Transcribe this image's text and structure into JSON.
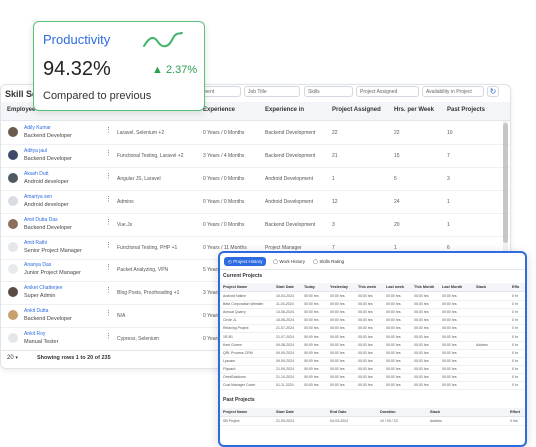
{
  "skill_table": {
    "title": "Skill Sea",
    "filters": [
      "ment",
      "Job Title",
      "Skills",
      "Project Assigned",
      "Availability in Project"
    ],
    "columns": [
      "Employee",
      "Experience",
      "Experience in",
      "Project Assigned",
      "Hrs. per Week",
      "Past Projects"
    ],
    "rows": [
      {
        "name": "Adily Kumar",
        "role": "Backend Developer",
        "skills": "Laravel, Selenium +2",
        "experience": "0 Years / 0 Months",
        "experience_in": "Backend Development",
        "assigned": "22",
        "hours": "22",
        "past": "10",
        "avatar_color": "#6b5a4e"
      },
      {
        "name": "Aditya jaul",
        "role": "Backend Developer",
        "skills": "Functional Testing, Laravel +2",
        "experience": "3 Years / 4 Months",
        "experience_in": "Backend Development",
        "assigned": "21",
        "hours": "15",
        "past": "7",
        "avatar_color": "#3d4a6b"
      },
      {
        "name": "Akash Dutt",
        "role": "Android developer",
        "skills": "Angular JS, Laravel",
        "experience": "0 Years / 0 Months",
        "experience_in": "Android Development",
        "assigned": "1",
        "hours": "5",
        "past": "3",
        "avatar_color": "#4e5a62"
      },
      {
        "name": "Amartya sen",
        "role": "Android developer",
        "skills": "Admins",
        "experience": "0 Years / 0 Months",
        "experience_in": "Android Development",
        "assigned": "12",
        "hours": "24",
        "past": "1",
        "avatar_color": "#d9dde3"
      },
      {
        "name": "Amit Dutta Das",
        "role": "Backend Developer",
        "skills": "Vue.Js",
        "experience": "0 Years / 0 Months",
        "experience_in": "Backend Development",
        "assigned": "3",
        "hours": "20",
        "past": "1",
        "avatar_color": "#8a6f5c"
      },
      {
        "name": "Amit Rathi",
        "role": "Senior Project Manager",
        "skills": "Functional Testing, PHP +1",
        "experience": "0 Years / 11 Months",
        "experience_in": "Project Manager",
        "assigned": "7",
        "hours": "1",
        "past": "6",
        "avatar_color": "#e3e6ea"
      },
      {
        "name": "Ananya Das",
        "role": "Junior Project Manager",
        "skills": "Packet Analyzing, VPN",
        "experience": "5 Years / 0 Months",
        "experience_in": "Project Manager",
        "assigned": "",
        "hours": "",
        "past": "",
        "avatar_color": "#e8ebee"
      },
      {
        "name": "Aniket Chatterjee",
        "role": "Super Admin",
        "skills": "Blog Posts, Proofreading +1",
        "experience": "3 Years / 0 Months",
        "experience_in": "",
        "assigned": "",
        "hours": "",
        "past": "",
        "avatar_color": "#5b4b45"
      },
      {
        "name": "Ankit Dutta",
        "role": "Backend Developer",
        "skills": "N/A",
        "experience": "0 Years / 0 Months",
        "experience_in": "",
        "assigned": "",
        "hours": "",
        "past": "",
        "avatar_color": "#c9a070"
      },
      {
        "name": "Ankit Roy",
        "role": "Manual Tester",
        "skills": "Cypress, Selenium",
        "experience": "0 Years / 0 Months",
        "experience_in": "",
        "assigned": "",
        "hours": "",
        "past": "",
        "avatar_color": "#e3e6ea"
      }
    ],
    "page_size": "20",
    "rows_info": "Showing rows 1 to 20 of 235"
  },
  "productivity": {
    "title": "Productivity",
    "value": "94.32%",
    "change": "2.37%",
    "subtitle": "Compared to previous"
  },
  "project_history": {
    "tabs": [
      "Project History",
      "Work History",
      "Skills Rating"
    ],
    "current_title": "Current Projects",
    "current_columns": [
      "Project Name",
      "Start Date",
      "Today",
      "Yesterday",
      "This week",
      "Last week",
      "This Month",
      "Last Month",
      "Stack",
      "Effo"
    ],
    "current_rows": [
      [
        "Android Native",
        "10-04-2024",
        "00:00 hrs",
        "00:00 hrs",
        "00:00 hrs",
        "00:00 hrs",
        "00:00 hrs",
        "00:00 hrs",
        "",
        "0 hr"
      ],
      [
        "Beta Corporation Website",
        "11-04-2024",
        "00:00 hrs",
        "00:00 hrs",
        "00:00 hrs",
        "00:00 hrs",
        "00:00 hrs",
        "00:00 hrs",
        "",
        "0 hr"
      ],
      [
        "Annual Quarry",
        "14-06-2024",
        "00:00 hrs",
        "00:00 hrs",
        "00:00 hrs",
        "00:00 hrs",
        "00:00 hrs",
        "00:00 hrs",
        "",
        "0 hr"
      ],
      [
        "Circle JL",
        "16-06-2024",
        "00:00 hrs",
        "00:00 hrs",
        "00:00 hrs",
        "00:00 hrs",
        "00:00 hrs",
        "00:00 hrs",
        "",
        "0 hr"
      ],
      [
        "Relaxing Project",
        "21-07-2024",
        "00:00 hrs",
        "00:00 hrs",
        "00:00 hrs",
        "00:00 hrs",
        "00:00 hrs",
        "00:00 hrs",
        "",
        "0 hr"
      ],
      [
        "1R-B1",
        "21-07-2024",
        "00:00 hrs",
        "00:00 hrs",
        "00:00 hrs",
        "00:00 hrs",
        "00:00 hrs",
        "00:00 hrs",
        "",
        "0 hr"
      ],
      [
        "Kent Gorem",
        "09-08-2024",
        "00:00 hrs",
        "00:00 hrs",
        "00:00 hrs",
        "00:00 hrs",
        "00:00 hrs",
        "00:00 hrs",
        "Adobes",
        "0 hr"
      ],
      [
        "QRL Process CRM",
        "09-09-2024",
        "00:00 hrs",
        "00:00 hrs",
        "00:00 hrs",
        "00:00 hrs",
        "00:00 hrs",
        "00:00 hrs",
        "",
        "0 hr"
      ],
      [
        "Lysoam",
        "09-09-2024",
        "00:00 hrs",
        "00:00 hrs",
        "00:00 hrs",
        "00:00 hrs",
        "00:00 hrs",
        "00:00 hrs",
        "",
        "0 hr"
      ],
      [
        "Flipcard",
        "21-09-2024",
        "00:00 hrs",
        "00:00 hrs",
        "00:00 hrs",
        "00:00 hrs",
        "00:00 hrs",
        "00:00 hrs",
        "",
        "0 hr"
      ],
      [
        "OmniSolutions",
        "21-10-2024",
        "00:00 hrs",
        "00:00 hrs",
        "00:00 hrs",
        "00:00 hrs",
        "00:00 hrs",
        "00:00 hrs",
        "",
        "0 hr"
      ],
      [
        "Cost Manager Coder",
        "01-11-2024",
        "00:00 hrs",
        "00:00 hrs",
        "00:00 hrs",
        "00:00 hrs",
        "00:00 hrs",
        "00:00 hrs",
        "",
        "0 hr"
      ]
    ],
    "past_title": "Past Projects",
    "past_columns": [
      "Project Name",
      "Start Date",
      "End Date",
      "Duration",
      "Stack",
      "Effort"
    ],
    "past_rows": [
      [
        "SB Project",
        "21-09-2024",
        "04-03-2024",
        "10 / 09 / 23",
        "Adobes",
        "0 hrs"
      ]
    ]
  }
}
